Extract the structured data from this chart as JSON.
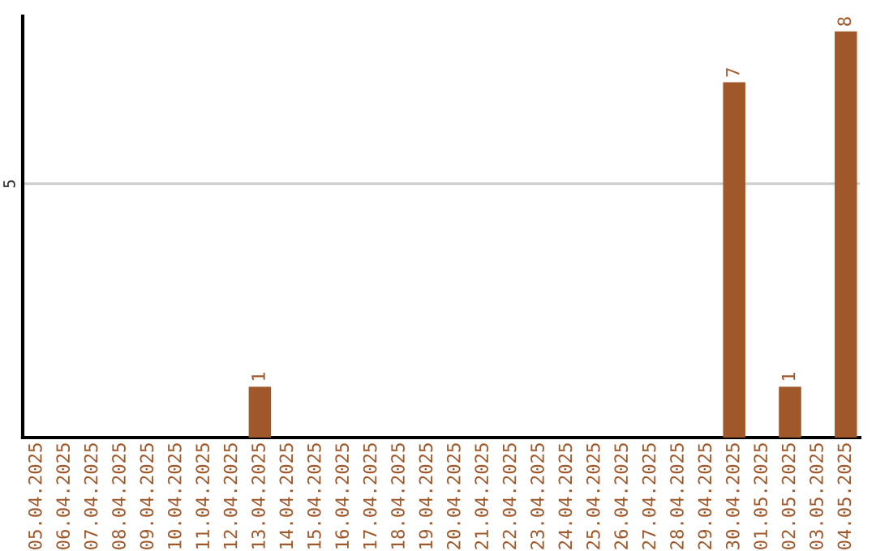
{
  "chart_data": {
    "type": "bar",
    "categories": [
      "05.04.2025",
      "06.04.2025",
      "07.04.2025",
      "08.04.2025",
      "09.04.2025",
      "10.04.2025",
      "11.04.2025",
      "12.04.2025",
      "13.04.2025",
      "14.04.2025",
      "15.04.2025",
      "16.04.2025",
      "17.04.2025",
      "18.04.2025",
      "19.04.2025",
      "20.04.2025",
      "21.04.2025",
      "22.04.2025",
      "23.04.2025",
      "24.04.2025",
      "25.04.2025",
      "26.04.2025",
      "27.04.2025",
      "28.04.2025",
      "29.04.2025",
      "30.04.2025",
      "01.05.2025",
      "02.05.2025",
      "03.05.2025",
      "04.05.2025"
    ],
    "values": [
      0,
      0,
      0,
      0,
      0,
      0,
      0,
      0,
      1,
      0,
      0,
      0,
      0,
      0,
      0,
      0,
      0,
      0,
      0,
      0,
      0,
      0,
      0,
      0,
      0,
      7,
      0,
      1,
      0,
      8
    ],
    "value_labels": [
      null,
      null,
      null,
      null,
      null,
      null,
      null,
      null,
      "1",
      null,
      null,
      null,
      null,
      null,
      null,
      null,
      null,
      null,
      null,
      null,
      null,
      null,
      null,
      null,
      null,
      "7",
      null,
      "1",
      null,
      "8"
    ],
    "color": "#a0582a",
    "ylim": [
      0,
      8.3
    ],
    "yticks": [
      5
    ],
    "grid": "y"
  }
}
